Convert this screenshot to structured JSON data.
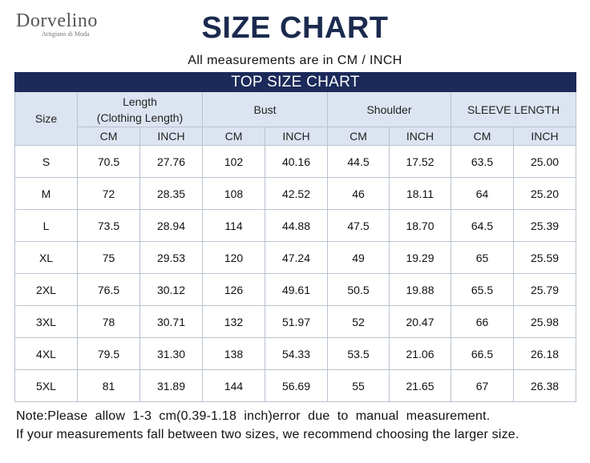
{
  "brand": {
    "name": "Dorvelino",
    "tagline": "Artigiano di Moda"
  },
  "title": "SIZE CHART",
  "subtitle": "All measurements are in CM / INCH",
  "table": {
    "banner": "TOP SIZE CHART",
    "size_header": "Size",
    "groups": [
      {
        "label": "Length\n(Clothing Length)"
      },
      {
        "label": "Bust"
      },
      {
        "label": "Shoulder"
      },
      {
        "label": "SLEEVE LENGTH"
      }
    ],
    "unit_cm": "CM",
    "unit_inch": "INCH",
    "rows": [
      {
        "size": "S",
        "values": [
          "70.5",
          "27.76",
          "102",
          "40.16",
          "44.5",
          "17.52",
          "63.5",
          "25.00"
        ]
      },
      {
        "size": "M",
        "values": [
          "72",
          "28.35",
          "108",
          "42.52",
          "46",
          "18.11",
          "64",
          "25.20"
        ]
      },
      {
        "size": "L",
        "values": [
          "73.5",
          "28.94",
          "114",
          "44.88",
          "47.5",
          "18.70",
          "64.5",
          "25.39"
        ]
      },
      {
        "size": "XL",
        "values": [
          "75",
          "29.53",
          "120",
          "47.24",
          "49",
          "19.29",
          "65",
          "25.59"
        ]
      },
      {
        "size": "2XL",
        "values": [
          "76.5",
          "30.12",
          "126",
          "49.61",
          "50.5",
          "19.88",
          "65.5",
          "25.79"
        ]
      },
      {
        "size": "3XL",
        "values": [
          "78",
          "30.71",
          "132",
          "51.97",
          "52",
          "20.47",
          "66",
          "25.98"
        ]
      },
      {
        "size": "4XL",
        "values": [
          "79.5",
          "31.30",
          "138",
          "54.33",
          "53.5",
          "21.06",
          "66.5",
          "26.18"
        ]
      },
      {
        "size": "5XL",
        "values": [
          "81",
          "31.89",
          "144",
          "56.69",
          "55",
          "21.65",
          "67",
          "26.38"
        ]
      }
    ]
  },
  "notes": {
    "line1": "Note:Please  allow  1-3  cm(0.39-1.18  inch)error  due  to  manual  measurement.",
    "line2": "If your measurements fall between two sizes, we recommend choosing the larger size."
  },
  "colors": {
    "navy": "#1b2a5a",
    "title": "#1b2a4e",
    "header_bg": "#dde4f1",
    "grid": "#b9c2cf"
  }
}
